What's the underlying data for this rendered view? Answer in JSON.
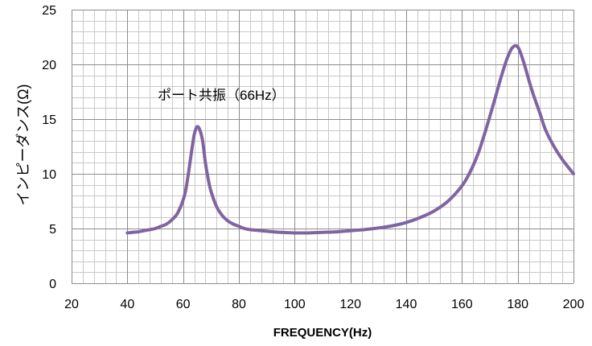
{
  "chart_data": {
    "type": "line",
    "title": "",
    "xlabel": "FREQUENCY(Hz)",
    "ylabel": "インピーダンス(Ω)",
    "xlim": [
      20,
      200
    ],
    "ylim": [
      0,
      25
    ],
    "xticks": [
      20,
      40,
      60,
      80,
      100,
      120,
      140,
      160,
      180,
      200
    ],
    "yticks": [
      0,
      5,
      10,
      15,
      20,
      25
    ],
    "grid": true,
    "minor_grid": true,
    "legend": "none",
    "annotations": [
      {
        "text": "ポート共振（66Hz）",
        "x": 66,
        "y": 14.3
      }
    ],
    "series": [
      {
        "color": "#8064a2",
        "x": [
          40,
          42,
          44,
          46,
          48,
          50,
          52,
          54,
          56,
          58,
          60,
          61,
          62,
          63,
          64,
          65,
          66,
          67,
          68,
          69,
          70,
          72,
          74,
          76,
          78,
          80,
          82,
          84,
          86,
          88,
          90,
          95,
          100,
          105,
          110,
          115,
          120,
          125,
          130,
          135,
          140,
          145,
          150,
          155,
          160,
          163,
          166,
          169,
          172,
          174,
          176,
          178,
          180,
          182,
          185,
          188,
          190,
          193,
          196,
          200
        ],
        "y": [
          4.6,
          4.65,
          4.7,
          4.8,
          4.9,
          5.0,
          5.2,
          5.4,
          5.8,
          6.4,
          7.6,
          8.6,
          10.2,
          12.0,
          13.6,
          14.3,
          14.0,
          13.0,
          11.0,
          9.5,
          8.4,
          7.0,
          6.2,
          5.7,
          5.4,
          5.2,
          5.0,
          4.9,
          4.85,
          4.8,
          4.75,
          4.65,
          4.6,
          4.6,
          4.65,
          4.7,
          4.8,
          4.9,
          5.05,
          5.25,
          5.55,
          6.0,
          6.6,
          7.5,
          8.9,
          10.2,
          12.0,
          14.4,
          17.0,
          18.8,
          20.4,
          21.5,
          21.6,
          20.3,
          17.7,
          15.5,
          14.0,
          12.5,
          11.3,
          10.0
        ]
      }
    ]
  }
}
